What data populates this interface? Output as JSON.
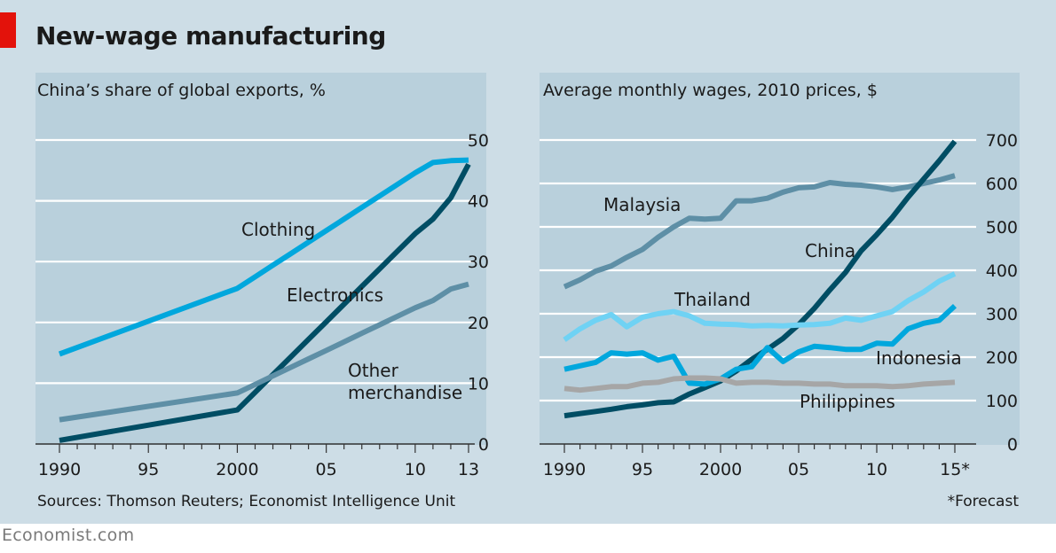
{
  "title": "New-wage manufacturing",
  "source": "Sources: Thomson Reuters; Economist Intelligence Unit",
  "footnote": "*Forecast",
  "brand": "Economist.com",
  "colors": {
    "background": "#cddde6",
    "plot_background": "#b9d0dc",
    "grid": "#ffffff",
    "accent_red": "#e3120b",
    "light_blue": "#00a7dd",
    "dark_navy": "#004d64",
    "grey_blue": "#5e8fa6",
    "pale_blue": "#6fd2f4",
    "grey": "#a6a6a6"
  },
  "chart_data": [
    {
      "type": "line",
      "title": "China’s share of global exports, %",
      "xlabel": "",
      "ylabel": "",
      "xlim": [
        1990,
        2013
      ],
      "ylim": [
        0,
        50
      ],
      "yticks": [
        0,
        10,
        20,
        30,
        40,
        50
      ],
      "xticks": [
        1990,
        1995,
        2000,
        2005,
        2010,
        2013
      ],
      "xtick_labels": [
        "1990",
        "95",
        "2000",
        "05",
        "10",
        "13"
      ],
      "grid": true,
      "series": [
        {
          "name": "Clothing",
          "label": "Clothing",
          "color": "#00a7dd",
          "x": [
            1990,
            2000,
            2001,
            2002,
            2003,
            2004,
            2005,
            2006,
            2007,
            2008,
            2009,
            2010,
            2011,
            2012,
            2013
          ],
          "values": [
            14.8,
            25.6,
            27.5,
            29.4,
            31.3,
            33.2,
            35.1,
            37.0,
            38.9,
            40.8,
            42.7,
            44.6,
            46.3,
            46.6,
            46.7
          ]
        },
        {
          "name": "Electronics",
          "label": "Electronics",
          "color": "#004d64",
          "x": [
            1990,
            2000,
            2001,
            2002,
            2003,
            2004,
            2005,
            2006,
            2007,
            2008,
            2009,
            2010,
            2011,
            2012,
            2013
          ],
          "values": [
            0.6,
            5.6,
            8.5,
            11.4,
            14.3,
            17.2,
            20.1,
            23.0,
            25.9,
            28.8,
            31.7,
            34.6,
            37.0,
            40.5,
            46.0
          ]
        },
        {
          "name": "Other merchandise",
          "label": "Other\nmerchandise",
          "color": "#5e8fa6",
          "x": [
            1990,
            2000,
            2001,
            2002,
            2003,
            2004,
            2005,
            2006,
            2007,
            2008,
            2009,
            2010,
            2011,
            2012,
            2013
          ],
          "values": [
            4.0,
            8.4,
            9.8,
            11.2,
            12.6,
            14.0,
            15.4,
            16.8,
            18.2,
            19.6,
            21.0,
            22.4,
            23.6,
            25.5,
            26.3
          ]
        }
      ]
    },
    {
      "type": "line",
      "title": "Average monthly wages, 2010 prices, $",
      "xlabel": "",
      "ylabel": "",
      "xlim": [
        1990,
        2015
      ],
      "ylim": [
        0,
        700
      ],
      "yticks": [
        0,
        100,
        200,
        300,
        400,
        500,
        600,
        700
      ],
      "xticks": [
        1990,
        1995,
        2000,
        2005,
        2010,
        2015
      ],
      "xtick_labels": [
        "1990",
        "95",
        "2000",
        "05",
        "10",
        "15*"
      ],
      "grid": true,
      "series": [
        {
          "name": "Malaysia",
          "label": "Malaysia",
          "color": "#5e8fa6",
          "x": [
            1990,
            1991,
            1992,
            1993,
            1994,
            1995,
            1996,
            1997,
            1998,
            1999,
            2000,
            2001,
            2002,
            2003,
            2004,
            2005,
            2006,
            2007,
            2008,
            2009,
            2010,
            2011,
            2012,
            2013,
            2014,
            2015
          ],
          "values": [
            362,
            378,
            398,
            410,
            430,
            448,
            476,
            500,
            520,
            518,
            520,
            560,
            560,
            566,
            580,
            590,
            592,
            602,
            598,
            596,
            592,
            586,
            592,
            600,
            608,
            618
          ]
        },
        {
          "name": "China",
          "label": "China",
          "color": "#004d64",
          "x": [
            1990,
            1991,
            1992,
            1993,
            1994,
            1995,
            1996,
            1997,
            1998,
            1999,
            2000,
            2001,
            2002,
            2003,
            2004,
            2005,
            2006,
            2007,
            2008,
            2009,
            2010,
            2011,
            2012,
            2013,
            2014,
            2015
          ],
          "values": [
            65,
            70,
            75,
            80,
            86,
            90,
            95,
            97,
            115,
            130,
            145,
            168,
            195,
            218,
            243,
            275,
            312,
            355,
            395,
            445,
            482,
            522,
            568,
            610,
            652,
            697
          ]
        },
        {
          "name": "Thailand",
          "label": "Thailand",
          "color": "#6fd2f4",
          "x": [
            1990,
            1991,
            1992,
            1993,
            1994,
            1995,
            1996,
            1997,
            1998,
            1999,
            2000,
            2001,
            2002,
            2003,
            2004,
            2005,
            2006,
            2007,
            2008,
            2009,
            2010,
            2011,
            2012,
            2013,
            2014,
            2015
          ],
          "values": [
            240,
            265,
            285,
            298,
            270,
            292,
            300,
            305,
            295,
            278,
            276,
            275,
            272,
            273,
            272,
            274,
            275,
            278,
            290,
            285,
            295,
            305,
            330,
            350,
            375,
            392
          ]
        },
        {
          "name": "Indonesia",
          "label": "Indonesia",
          "color": "#00a7dd",
          "x": [
            1990,
            1991,
            1992,
            1993,
            1994,
            1995,
            1996,
            1997,
            1998,
            1999,
            2000,
            2001,
            2002,
            2003,
            2004,
            2005,
            2006,
            2007,
            2008,
            2009,
            2010,
            2011,
            2012,
            2013,
            2014,
            2015
          ],
          "values": [
            172,
            180,
            188,
            210,
            207,
            210,
            193,
            202,
            140,
            138,
            150,
            172,
            178,
            222,
            190,
            212,
            225,
            222,
            218,
            218,
            232,
            230,
            265,
            278,
            285,
            318
          ]
        },
        {
          "name": "Philippines",
          "label": "Philippines",
          "color": "#a6a6a6",
          "x": [
            1990,
            1991,
            1992,
            1993,
            1994,
            1995,
            1996,
            1997,
            1998,
            1999,
            2000,
            2001,
            2002,
            2003,
            2004,
            2005,
            2006,
            2007,
            2008,
            2009,
            2010,
            2011,
            2012,
            2013,
            2014,
            2015
          ],
          "values": [
            128,
            124,
            128,
            132,
            132,
            140,
            142,
            150,
            152,
            152,
            150,
            140,
            142,
            142,
            140,
            140,
            138,
            138,
            134,
            134,
            134,
            132,
            134,
            138,
            140,
            142
          ]
        }
      ]
    }
  ]
}
